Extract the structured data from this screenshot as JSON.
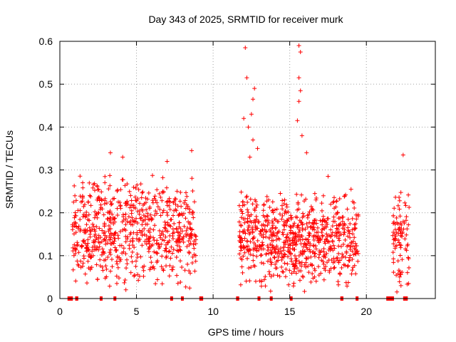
{
  "chart_data": {
    "type": "scatter",
    "title": "Day 343 of 2025, SRMTID for receiver murk",
    "xlabel": "GPS time / hours",
    "ylabel": "SRMTID / TECUs",
    "xlim": [
      0,
      24.5
    ],
    "ylim": [
      0,
      0.6
    ],
    "x_ticks": [
      0,
      5,
      10,
      15,
      20
    ],
    "x_tick_labels": [
      "0",
      "5",
      "10",
      "15",
      "20"
    ],
    "y_ticks": [
      0,
      0.1,
      0.2,
      0.3,
      0.4,
      0.5,
      0.6
    ],
    "y_tick_labels": [
      "0",
      "0.1",
      "0.2",
      "0.3",
      "0.4",
      "0.5",
      "0.6"
    ],
    "grid": true,
    "marker": "plus",
    "color": "#ff0000",
    "clusters": [
      {
        "x_range": [
          0.8,
          8.9
        ],
        "y_range": [
          0.0,
          0.29
        ],
        "count": 700
      },
      {
        "x_range": [
          11.7,
          19.5
        ],
        "y_range": [
          0.0,
          0.25
        ],
        "count": 750
      },
      {
        "x_range": [
          21.7,
          22.8
        ],
        "y_range": [
          0.0,
          0.26
        ],
        "count": 90
      }
    ],
    "highlighted_points": [
      {
        "x": 12.1,
        "y": 0.585
      },
      {
        "x": 12.2,
        "y": 0.515
      },
      {
        "x": 12.7,
        "y": 0.49
      },
      {
        "x": 12.6,
        "y": 0.465
      },
      {
        "x": 12.5,
        "y": 0.43
      },
      {
        "x": 12.0,
        "y": 0.42
      },
      {
        "x": 12.3,
        "y": 0.4
      },
      {
        "x": 12.6,
        "y": 0.37
      },
      {
        "x": 12.9,
        "y": 0.35
      },
      {
        "x": 12.4,
        "y": 0.33
      },
      {
        "x": 15.6,
        "y": 0.59
      },
      {
        "x": 15.7,
        "y": 0.575
      },
      {
        "x": 15.6,
        "y": 0.515
      },
      {
        "x": 15.7,
        "y": 0.485
      },
      {
        "x": 15.6,
        "y": 0.46
      },
      {
        "x": 15.5,
        "y": 0.415
      },
      {
        "x": 15.8,
        "y": 0.38
      },
      {
        "x": 16.1,
        "y": 0.34
      },
      {
        "x": 3.3,
        "y": 0.34
      },
      {
        "x": 4.1,
        "y": 0.33
      },
      {
        "x": 7.0,
        "y": 0.32
      },
      {
        "x": 8.6,
        "y": 0.345
      },
      {
        "x": 22.4,
        "y": 0.335
      },
      {
        "x": 17.5,
        "y": 0.285
      },
      {
        "x": 19.0,
        "y": 0.255
      }
    ],
    "baseline_markers": [
      {
        "x_start": 0.5,
        "x_end": 0.85
      },
      {
        "x_start": 1.0,
        "x_end": 1.2
      },
      {
        "x_start": 2.6,
        "x_end": 2.75
      },
      {
        "x_start": 3.5,
        "x_end": 3.6
      },
      {
        "x_start": 7.2,
        "x_end": 7.3
      },
      {
        "x_start": 7.9,
        "x_end": 8.0
      },
      {
        "x_start": 9.1,
        "x_end": 9.35
      },
      {
        "x_start": 11.5,
        "x_end": 11.7
      },
      {
        "x_start": 12.9,
        "x_end": 13.0
      },
      {
        "x_start": 13.7,
        "x_end": 13.85
      },
      {
        "x_start": 15.0,
        "x_end": 15.1
      },
      {
        "x_start": 18.3,
        "x_end": 18.5
      },
      {
        "x_start": 19.3,
        "x_end": 19.45
      },
      {
        "x_start": 21.3,
        "x_end": 21.8
      },
      {
        "x_start": 22.4,
        "x_end": 22.7
      }
    ]
  }
}
